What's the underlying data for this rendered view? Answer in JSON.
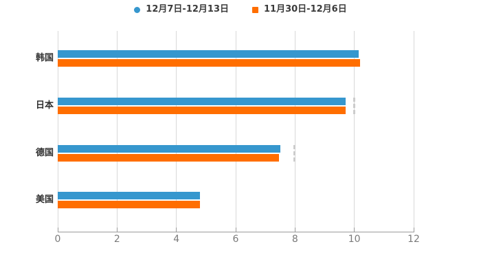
{
  "chart_data": {
    "type": "bar",
    "orientation": "horizontal",
    "title": "",
    "xlabel": "",
    "ylabel": "",
    "categories": [
      "韩国",
      "日本",
      "德国",
      "美国"
    ],
    "series": [
      {
        "name": "12月7日-12月13日",
        "marker": "circle",
        "color": "#3697ce",
        "values": [
          10.15,
          9.7,
          7.5,
          4.8
        ]
      },
      {
        "name": "11月30日-12月6日",
        "marker": "square",
        "color": "#ff6e00",
        "values": [
          10.2,
          9.7,
          7.45,
          4.8
        ]
      }
    ],
    "xlim": [
      0,
      12
    ],
    "xticks": [
      0,
      2,
      4,
      6,
      8,
      10,
      12
    ],
    "grid": true,
    "legend_position": "top-center",
    "annotations": {
      "dashed_end_ticks": [
        {
          "category": "日本",
          "x": 10
        },
        {
          "category": "德国",
          "x": 8
        }
      ]
    },
    "colors": {
      "background": "#ffffff",
      "gridline": "#d8d8d8",
      "axis_line": "#9a9a9a",
      "tick_label": "#7a7a7a",
      "category_label": "#2f2f2f",
      "legend_label": "#3b3b3b",
      "dashed_tick": "#cccccc"
    }
  }
}
